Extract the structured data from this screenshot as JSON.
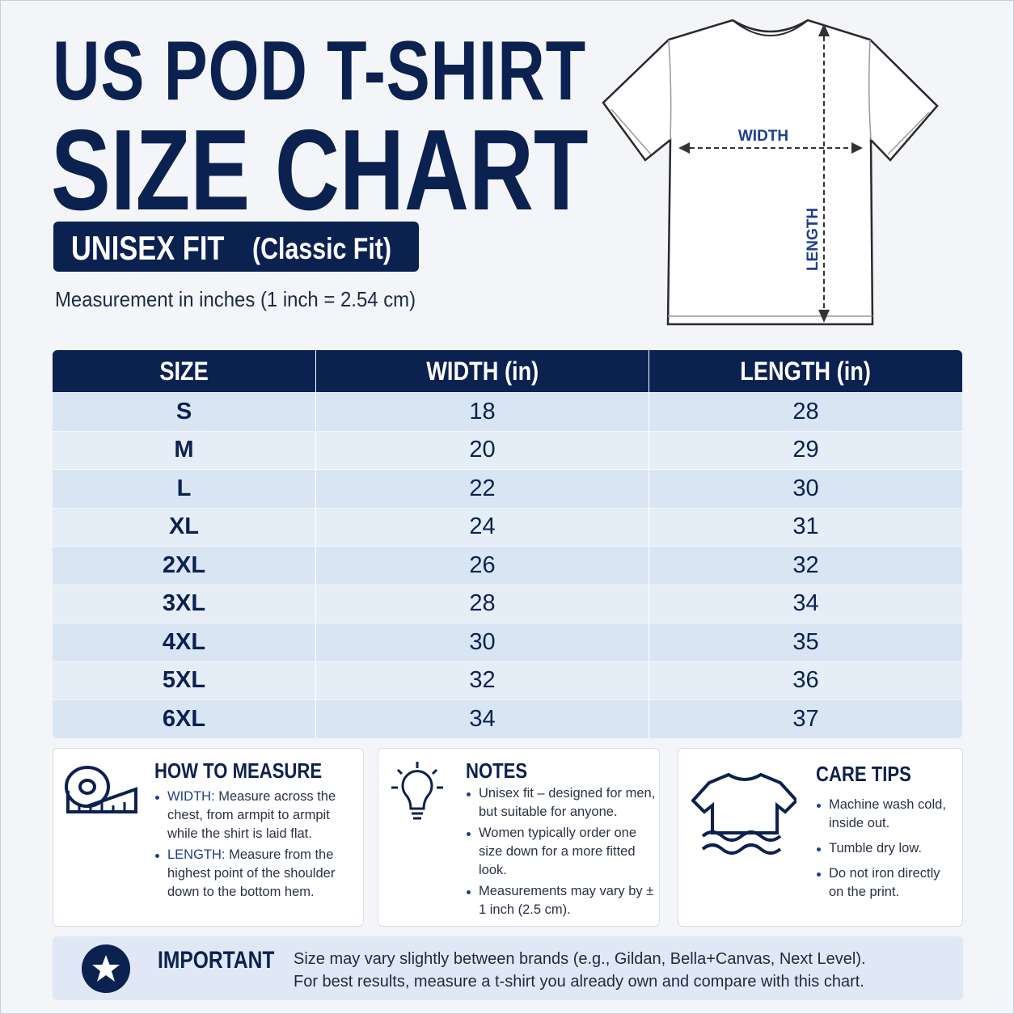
{
  "header": {
    "title_line1": "US POD T-SHIRT",
    "title_line2": "SIZE CHART",
    "fit_badge": "UNISEX FIT",
    "fit_detail": "(Classic Fit)",
    "note": "Measurement in inches (1 inch = 2.54 cm)"
  },
  "diagram": {
    "width_label": "WIDTH",
    "length_label": "LENGTH"
  },
  "table": {
    "headers": [
      "SIZE",
      "WIDTH (in)",
      "LENGTH (in)"
    ],
    "rows": [
      [
        "S",
        18,
        28
      ],
      [
        "M",
        20,
        29
      ],
      [
        "L",
        22,
        30
      ],
      [
        "XL",
        24,
        31
      ],
      [
        "2XL",
        26,
        32
      ],
      [
        "3XL",
        28,
        34
      ],
      [
        "4XL",
        30,
        35
      ],
      [
        "5XL",
        32,
        36
      ],
      [
        "6XL",
        34,
        37
      ]
    ]
  },
  "how_to_measure": {
    "title": "HOW TO MEASURE",
    "items": [
      {
        "term": "WIDTH:",
        "text": "Measure across the chest, from armpit to armpit while the shirt is laid flat."
      },
      {
        "term": "LENGTH:",
        "text": "Measure from the highest point of the shoulder down to the bottom hem."
      }
    ]
  },
  "notes": {
    "title": "NOTES",
    "items": [
      "Unisex fit – designed for men, but suitable for anyone.",
      "Women typically order one size down for a more fitted look.",
      "Measurements may vary by ± 1 inch (2.5 cm)."
    ]
  },
  "care_tips": {
    "title": "CARE TIPS",
    "items": [
      "Machine wash cold, inside out.",
      "Tumble dry low.",
      "Do not iron directly on the print."
    ]
  },
  "important": {
    "title": "IMPORTANT",
    "lines": [
      "Size may vary slightly between brands (e.g., Gildan, Bella+Canvas, Next Level).",
      "For best results, measure a t-shirt you already own and compare with this chart."
    ]
  }
}
